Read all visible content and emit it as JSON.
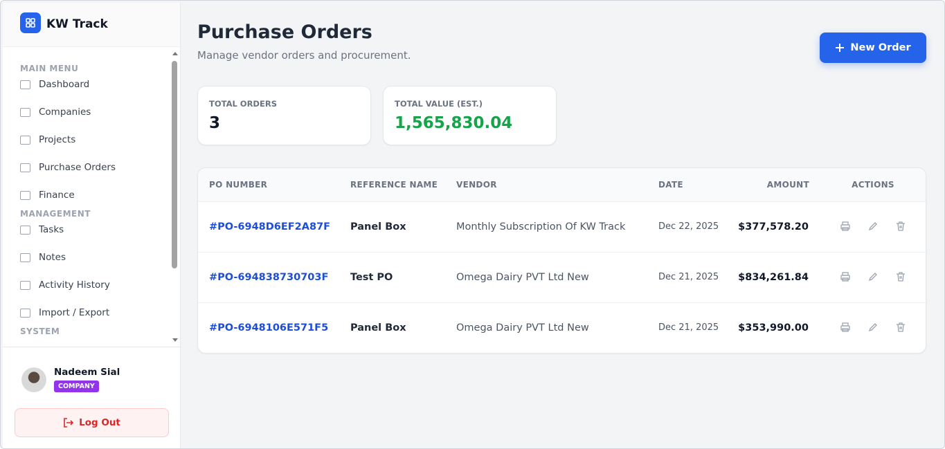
{
  "brand": "KW Track",
  "menu": [
    {
      "heading": "MAIN MENU",
      "items": [
        "Dashboard",
        "Companies",
        "Projects",
        "Purchase Orders",
        "Finance"
      ]
    },
    {
      "heading": "MANAGEMENT",
      "items": [
        "Tasks",
        "Notes",
        "Activity History",
        "Import / Export"
      ]
    },
    {
      "heading": "SYSTEM",
      "items": []
    }
  ],
  "user": {
    "name": "Nadeem Sial",
    "role": "COMPANY",
    "logout": "Log Out"
  },
  "header": {
    "title": "Purchase Orders",
    "subtitle": "Manage vendor orders and procurement.",
    "button": "New Order"
  },
  "stats": [
    {
      "label": "TOTAL ORDERS",
      "value": "3"
    },
    {
      "label": "TOTAL VALUE (EST.)",
      "value": "1,565,830.04"
    }
  ],
  "table": {
    "columns": [
      "PO NUMBER",
      "REFERENCE NAME",
      "VENDOR",
      "DATE",
      "AMOUNT",
      "ACTIONS"
    ],
    "rows": [
      [
        "#PO-6948D6EF2A87F",
        "Panel Box",
        "Monthly Subscription Of KW Track",
        "Dec 22, 2025",
        "$377,578.20"
      ],
      [
        "#PO-694838730703F",
        "Test PO",
        "Omega Dairy PVT Ltd New",
        "Dec 21, 2025",
        "$834,261.84"
      ],
      [
        "#PO-6948106E571F5",
        "Panel Box",
        "Omega Dairy PVT Ltd New",
        "Dec 21, 2025",
        "$353,990.00"
      ]
    ]
  }
}
